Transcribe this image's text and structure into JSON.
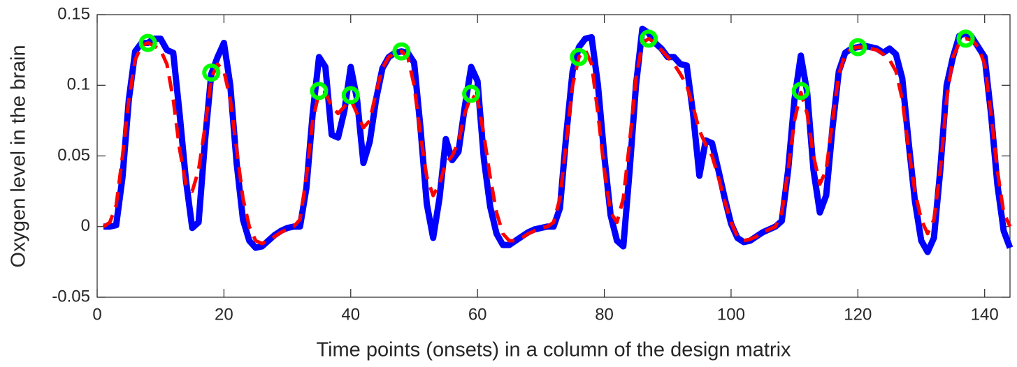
{
  "chart_data": {
    "type": "line",
    "xlabel": "Time points (onsets) in a column of the design matrix",
    "ylabel": "Oxygen level in the brain",
    "xlim": [
      0,
      144
    ],
    "xticks": [
      0,
      20,
      40,
      60,
      80,
      100,
      120,
      140
    ],
    "ylim": [
      -0.05,
      0.15
    ],
    "yticks": [
      -0.05,
      0,
      0.05,
      0.1,
      0.15
    ],
    "grid": false,
    "x": [
      1,
      2,
      3,
      4,
      5,
      6,
      7,
      8,
      9,
      10,
      11,
      12,
      13,
      14,
      15,
      16,
      17,
      18,
      19,
      20,
      21,
      22,
      23,
      24,
      25,
      26,
      27,
      28,
      29,
      30,
      31,
      32,
      33,
      34,
      35,
      36,
      37,
      38,
      39,
      40,
      41,
      42,
      43,
      44,
      45,
      46,
      47,
      48,
      49,
      50,
      51,
      52,
      53,
      54,
      55,
      56,
      57,
      58,
      59,
      60,
      61,
      62,
      63,
      64,
      65,
      66,
      67,
      68,
      69,
      70,
      71,
      72,
      73,
      74,
      75,
      76,
      77,
      78,
      79,
      80,
      81,
      82,
      83,
      84,
      85,
      86,
      87,
      88,
      89,
      90,
      91,
      92,
      93,
      94,
      95,
      96,
      97,
      98,
      99,
      100,
      101,
      102,
      103,
      104,
      105,
      106,
      107,
      108,
      109,
      110,
      111,
      112,
      113,
      114,
      115,
      116,
      117,
      118,
      119,
      120,
      121,
      122,
      123,
      124,
      125,
      126,
      127,
      128,
      129,
      130,
      131,
      132,
      133,
      134,
      135,
      136,
      137,
      138,
      139,
      140,
      141,
      142,
      143,
      144
    ],
    "series": [
      {
        "color": "#0000ff",
        "style": "solid",
        "values": [
          0,
          0,
          0.001,
          0.035,
          0.09,
          0.124,
          0.13,
          0.13,
          0.133,
          0.133,
          0.125,
          0.123,
          0.08,
          0.033,
          -0.001,
          0.003,
          0.06,
          0.108,
          0.12,
          0.13,
          0.1,
          0.045,
          0.005,
          -0.01,
          -0.015,
          -0.014,
          -0.01,
          -0.006,
          -0.003,
          -0.001,
          0,
          0,
          0.027,
          0.08,
          0.12,
          0.113,
          0.065,
          0.063,
          0.082,
          0.113,
          0.09,
          0.045,
          0.06,
          0.09,
          0.112,
          0.12,
          0.123,
          0.124,
          0.123,
          0.116,
          0.07,
          0.016,
          -0.008,
          0.02,
          0.062,
          0.047,
          0.053,
          0.085,
          0.113,
          0.103,
          0.048,
          0.014,
          -0.005,
          -0.013,
          -0.013,
          -0.01,
          -0.007,
          -0.004,
          -0.002,
          -0.001,
          0,
          0,
          0.013,
          0.065,
          0.11,
          0.127,
          0.133,
          0.134,
          0.1,
          0.05,
          0.008,
          -0.01,
          -0.014,
          0.04,
          0.1,
          0.14,
          0.137,
          0.13,
          0.126,
          0.12,
          0.12,
          0.115,
          0.114,
          0.08,
          0.036,
          0.061,
          0.059,
          0.04,
          0.02,
          0.002,
          -0.008,
          -0.011,
          -0.01,
          -0.007,
          -0.004,
          -0.002,
          0,
          0.004,
          0.04,
          0.09,
          0.121,
          0.095,
          0.04,
          0.01,
          0.022,
          0.07,
          0.11,
          0.123,
          0.126,
          0.127,
          0.128,
          0.127,
          0.126,
          0.123,
          0.126,
          0.122,
          0.105,
          0.06,
          0.018,
          -0.01,
          -0.018,
          -0.008,
          0.04,
          0.1,
          0.12,
          0.135,
          0.137,
          0.134,
          0.127,
          0.12,
          0.08,
          0.03,
          -0.003,
          -0.015
        ]
      },
      {
        "color": "#ff0000",
        "style": "dashed",
        "values": [
          0,
          0.003,
          0.015,
          0.05,
          0.09,
          0.118,
          0.128,
          0.13,
          0.128,
          0.125,
          0.115,
          0.09,
          0.055,
          0.03,
          0.025,
          0.04,
          0.07,
          0.105,
          0.115,
          0.11,
          0.09,
          0.055,
          0.02,
          0,
          -0.01,
          -0.012,
          -0.01,
          -0.007,
          -0.004,
          -0.002,
          0,
          0.005,
          0.035,
          0.075,
          0.095,
          0.095,
          0.085,
          0.08,
          0.085,
          0.09,
          0.08,
          0.07,
          0.075,
          0.095,
          0.112,
          0.12,
          0.123,
          0.124,
          0.12,
          0.1,
          0.065,
          0.035,
          0.022,
          0.03,
          0.045,
          0.05,
          0.06,
          0.08,
          0.093,
          0.09,
          0.065,
          0.035,
          0.01,
          -0.005,
          -0.01,
          -0.01,
          -0.008,
          -0.005,
          -0.003,
          -0.001,
          0,
          0.003,
          0.02,
          0.06,
          0.1,
          0.12,
          0.125,
          0.115,
          0.08,
          0.04,
          0.01,
          0.003,
          0.02,
          0.06,
          0.105,
          0.13,
          0.133,
          0.13,
          0.125,
          0.12,
          0.115,
          0.108,
          0.1,
          0.085,
          0.068,
          0.058,
          0.05,
          0.035,
          0.018,
          0.003,
          -0.007,
          -0.01,
          -0.009,
          -0.007,
          -0.004,
          -0.002,
          0,
          0.01,
          0.04,
          0.075,
          0.095,
          0.08,
          0.05,
          0.03,
          0.04,
          0.075,
          0.108,
          0.122,
          0.126,
          0.127,
          0.127,
          0.126,
          0.125,
          0.122,
          0.118,
          0.11,
          0.09,
          0.055,
          0.025,
          0.005,
          -0.005,
          0.005,
          0.04,
          0.09,
          0.12,
          0.13,
          0.133,
          0.132,
          0.127,
          0.115,
          0.08,
          0.04,
          0.01,
          0
        ]
      },
      {
        "color": "#00ff00",
        "style": "marker",
        "x": [
          8,
          18,
          35,
          40,
          48,
          59,
          76,
          87,
          111,
          120,
          137
        ],
        "values": [
          0.13,
          0.109,
          0.096,
          0.093,
          0.124,
          0.094,
          0.12,
          0.133,
          0.096,
          0.127,
          0.133
        ]
      }
    ]
  }
}
